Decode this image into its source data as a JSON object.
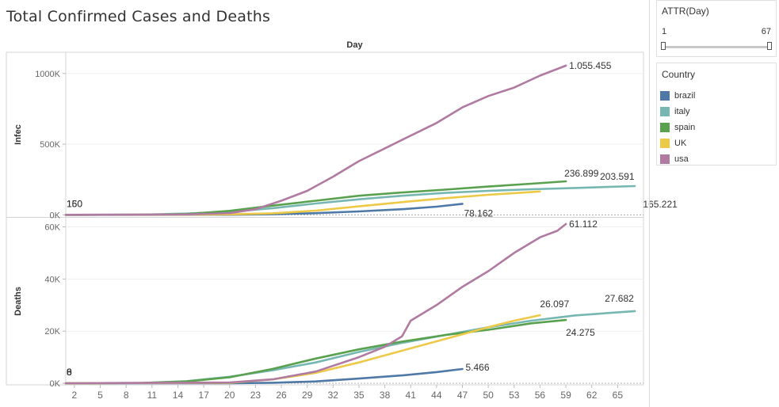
{
  "title": "Total Confirmed Cases and Deaths",
  "filter": {
    "title": "ATTR(Day)",
    "min_label": "1",
    "max_label": "67",
    "range": [
      1,
      67
    ]
  },
  "legend": {
    "title": "Country",
    "items": [
      {
        "label": "brazil",
        "color": "#4e79a7"
      },
      {
        "label": "italy",
        "color": "#76b7b2"
      },
      {
        "label": "spain",
        "color": "#59a14f"
      },
      {
        "label": "UK",
        "color": "#edc948"
      },
      {
        "label": "usa",
        "color": "#b07aa1"
      }
    ]
  },
  "chart_data": {
    "type": "line",
    "x_header": "Day",
    "xlim": [
      1,
      68
    ],
    "x_ticks": [
      2,
      5,
      8,
      11,
      14,
      17,
      20,
      23,
      26,
      29,
      32,
      35,
      38,
      41,
      44,
      47,
      50,
      53,
      56,
      59,
      62,
      65
    ],
    "panels": [
      {
        "ylabel": "Infec",
        "ylim": [
          -15000,
          1150000
        ],
        "y_ticks": [
          0,
          500000,
          1000000
        ],
        "y_tick_labels": [
          "0K",
          "500K",
          "1000K"
        ],
        "start_labels": [
          "1",
          "150",
          "160"
        ],
        "series": [
          {
            "name": "brazil",
            "color": "#4e79a7",
            "x": [
              1,
              10,
              20,
              25,
              30,
              35,
              40,
              44,
              47
            ],
            "y": [
              1,
              20,
              900,
              4000,
              12000,
              24000,
              40000,
              58000,
              78162
            ]
          },
          {
            "name": "italy",
            "color": "#76b7b2",
            "x": [
              1,
              10,
              15,
              20,
              25,
              30,
              35,
              40,
              45,
              50,
              55,
              60,
              67
            ],
            "y": [
              3,
              1000,
              9000,
              22000,
              47000,
              80000,
              110000,
              135000,
              155000,
              170000,
              181000,
              190000,
              203591
            ]
          },
          {
            "name": "spain",
            "color": "#59a14f",
            "x": [
              1,
              10,
              15,
              20,
              25,
              30,
              35,
              40,
              45,
              50,
              55,
              59
            ],
            "y": [
              1,
              600,
              6000,
              28000,
              65000,
              100000,
              135000,
              158000,
              178000,
              200000,
              220000,
              236899
            ]
          },
          {
            "name": "UK",
            "color": "#edc948",
            "x": [
              1,
              15,
              20,
              25,
              30,
              35,
              40,
              45,
              50,
              56
            ],
            "y": [
              2,
              1500,
              3500,
              11000,
              30000,
              60000,
              90000,
              118000,
              142000,
              165221
            ]
          },
          {
            "name": "usa",
            "color": "#b07aa1",
            "x": [
              1,
              15,
              20,
              23,
              26,
              29,
              32,
              35,
              38,
              41,
              44,
              47,
              50,
              53,
              56,
              59
            ],
            "y": [
              1,
              3000,
              12000,
              40000,
              100000,
              170000,
              270000,
              380000,
              470000,
              560000,
              650000,
              760000,
              840000,
              900000,
              985000,
              1055455
            ]
          }
        ],
        "end_labels": [
          {
            "series": "usa",
            "text": "1.055.455"
          },
          {
            "series": "spain",
            "text": "236.899"
          },
          {
            "series": "italy",
            "text": "203.591"
          },
          {
            "series": "UK",
            "text": "165.221"
          },
          {
            "series": "brazil",
            "text": "78.162"
          }
        ]
      },
      {
        "ylabel": "Deaths",
        "ylim": [
          -600,
          63500
        ],
        "y_ticks": [
          0,
          20000,
          40000,
          60000
        ],
        "y_tick_labels": [
          "0K",
          "20K",
          "40K",
          "60K"
        ],
        "start_labels": [
          "0",
          "3",
          "6",
          "8"
        ],
        "series": [
          {
            "name": "brazil",
            "color": "#4e79a7",
            "x": [
              1,
              20,
              25,
              30,
              35,
              40,
              44,
              47
            ],
            "y": [
              0,
              30,
              200,
              700,
              1800,
              3000,
              4300,
              5466
            ]
          },
          {
            "name": "italy",
            "color": "#76b7b2",
            "x": [
              1,
              10,
              15,
              20,
              25,
              30,
              35,
              40,
              45,
              50,
              55,
              60,
              67
            ],
            "y": [
              0,
              150,
              800,
              2500,
              5000,
              8000,
              12000,
              15500,
              18500,
              21500,
              24000,
              26000,
              27682
            ]
          },
          {
            "name": "spain",
            "color": "#59a14f",
            "x": [
              1,
              10,
              15,
              20,
              25,
              30,
              35,
              40,
              45,
              50,
              55,
              59
            ],
            "y": [
              0,
              100,
              700,
              2300,
              5500,
              9500,
              13000,
              16000,
              18500,
              20500,
              23000,
              24275
            ]
          },
          {
            "name": "UK",
            "color": "#edc948",
            "x": [
              1,
              20,
              25,
              30,
              35,
              40,
              45,
              50,
              53,
              56
            ],
            "y": [
              0,
              200,
              1500,
              4000,
              8000,
              12500,
              17000,
              21500,
              24000,
              26097
            ]
          },
          {
            "name": "usa",
            "color": "#b07aa1",
            "x": [
              1,
              20,
              25,
              30,
              35,
              38,
              40,
              41,
              44,
              47,
              50,
              53,
              56,
              58,
              59
            ],
            "y": [
              0,
              300,
              1500,
              4500,
              10000,
              14000,
              18000,
              24000,
              30000,
              37000,
              43000,
              50000,
              56000,
              58500,
              61112
            ]
          }
        ],
        "end_labels": [
          {
            "series": "usa",
            "text": "61.112"
          },
          {
            "series": "italy",
            "text": "27.682"
          },
          {
            "series": "UK",
            "text": "26.097"
          },
          {
            "series": "spain",
            "text": "24.275"
          },
          {
            "series": "brazil",
            "text": "5.466"
          }
        ]
      }
    ]
  }
}
